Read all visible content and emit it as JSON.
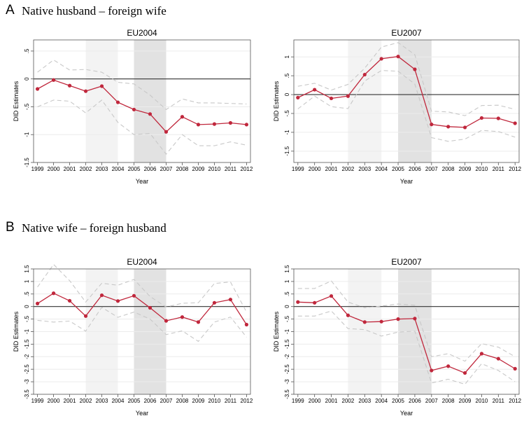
{
  "panels": [
    {
      "letter": "A",
      "title": "Native husband – foreign wife"
    },
    {
      "letter": "B",
      "title": "Native wife – foreign husband"
    }
  ],
  "colors": {
    "line": "#c0273c",
    "ci": "#c8c8c8",
    "shade_light": "#f3f3f3",
    "shade_dark": "#e2e2e2",
    "zero": "#333333"
  },
  "chart_data": [
    {
      "type": "line",
      "panel": "A",
      "title": "EU2004",
      "xlabel": "Year",
      "ylabel": "DID Estimates",
      "x": [
        1999,
        2000,
        2001,
        2002,
        2003,
        2004,
        2005,
        2006,
        2007,
        2008,
        2009,
        2010,
        2011,
        2012
      ],
      "estimate": [
        -0.18,
        -0.02,
        -0.12,
        -0.22,
        -0.13,
        -0.42,
        -0.55,
        -0.63,
        -0.95,
        -0.68,
        -0.82,
        -0.81,
        -0.79,
        -0.82
      ],
      "ci_upper": [
        0.12,
        0.34,
        0.16,
        0.17,
        0.12,
        -0.06,
        -0.09,
        -0.29,
        -0.55,
        -0.36,
        -0.43,
        -0.43,
        -0.44,
        -0.45
      ],
      "ci_lower": [
        -0.5,
        -0.38,
        -0.4,
        -0.61,
        -0.38,
        -0.78,
        -1.0,
        -0.98,
        -1.35,
        -1.0,
        -1.2,
        -1.2,
        -1.13,
        -1.19
      ],
      "shaded": [
        [
          2002,
          2004
        ],
        [
          2005,
          2007
        ]
      ],
      "ylim": [
        -1.5,
        0.7
      ],
      "yticks": [
        -1.5,
        -1,
        -0.5,
        0,
        0.5
      ],
      "ytick_labels": [
        "-1.5",
        "-1",
        "-.5",
        "0",
        ".5"
      ]
    },
    {
      "type": "line",
      "panel": "A",
      "title": "EU2007",
      "xlabel": "Year",
      "ylabel": "DID Estimates",
      "x": [
        1999,
        2000,
        2001,
        2002,
        2003,
        2004,
        2005,
        2006,
        2007,
        2008,
        2009,
        2010,
        2011,
        2012
      ],
      "estimate": [
        -0.08,
        0.13,
        -0.1,
        -0.04,
        0.53,
        0.95,
        1.01,
        0.67,
        -0.79,
        -0.85,
        -0.87,
        -0.62,
        -0.63,
        -0.76
      ],
      "ci_upper": [
        0.22,
        0.3,
        0.12,
        0.27,
        0.7,
        1.26,
        1.38,
        1.06,
        -0.44,
        -0.46,
        -0.56,
        -0.29,
        -0.28,
        -0.39
      ],
      "ci_lower": [
        -0.38,
        -0.04,
        -0.32,
        -0.37,
        0.36,
        0.64,
        0.62,
        0.28,
        -1.14,
        -1.24,
        -1.18,
        -0.95,
        -0.98,
        -1.13
      ],
      "shaded": [
        [
          2002,
          2004
        ],
        [
          2005,
          2007
        ]
      ],
      "ylim": [
        -1.8,
        1.45
      ],
      "yticks": [
        -1.5,
        -1,
        -0.5,
        0,
        0.5,
        1
      ],
      "ytick_labels": [
        "-1.5",
        "-1",
        "-.5",
        "0",
        ".5",
        "1"
      ]
    },
    {
      "type": "line",
      "panel": "B",
      "title": "EU2004",
      "xlabel": "Year",
      "ylabel": "DID Estimates",
      "x": [
        1999,
        2000,
        2001,
        2002,
        2003,
        2004,
        2005,
        2006,
        2007,
        2008,
        2009,
        2010,
        2011,
        2012
      ],
      "estimate": [
        0.12,
        0.53,
        0.23,
        -0.38,
        0.45,
        0.22,
        0.43,
        -0.05,
        -0.57,
        -0.42,
        -0.62,
        0.15,
        0.28,
        -0.72
      ],
      "ci_upper": [
        0.78,
        1.68,
        1.03,
        0.18,
        0.93,
        0.85,
        1.08,
        0.4,
        -0.02,
        0.13,
        0.15,
        0.92,
        0.98,
        -0.22
      ],
      "ci_lower": [
        -0.55,
        -0.62,
        -0.58,
        -0.98,
        -0.03,
        -0.43,
        -0.22,
        -0.5,
        -1.12,
        -0.97,
        -1.39,
        -0.62,
        -0.42,
        -1.22
      ],
      "shaded": [
        [
          2002,
          2004
        ],
        [
          2005,
          2007
        ]
      ],
      "ylim": [
        -3.5,
        1.5
      ],
      "yticks": [
        -3.5,
        -3,
        -2.5,
        -2,
        -1.5,
        -1,
        -0.5,
        0,
        0.5,
        1,
        1.5
      ],
      "ytick_labels": [
        "-3.5",
        "-3",
        "-2.5",
        "-2",
        "-1.5",
        "-1",
        "-.5",
        "0",
        ".5",
        "1",
        "1.5"
      ]
    },
    {
      "type": "line",
      "panel": "B",
      "title": "EU2007",
      "xlabel": "Year",
      "ylabel": "DID Estimates",
      "x": [
        1999,
        2000,
        2001,
        2002,
        2003,
        2004,
        2005,
        2006,
        2007,
        2008,
        2009,
        2010,
        2011,
        2012
      ],
      "estimate": [
        0.18,
        0.15,
        0.42,
        -0.35,
        -0.62,
        -0.6,
        -0.5,
        -0.48,
        -2.55,
        -2.38,
        -2.65,
        -1.88,
        -2.08,
        -2.48
      ],
      "ci_upper": [
        0.72,
        0.72,
        1.02,
        0.18,
        -0.05,
        0.02,
        0.1,
        0.05,
        -2.0,
        -1.88,
        -2.18,
        -1.48,
        -1.62,
        -2.0
      ],
      "ci_lower": [
        -0.38,
        -0.38,
        -0.18,
        -0.88,
        -0.92,
        -1.18,
        -1.02,
        -0.98,
        -3.05,
        -2.9,
        -3.1,
        -2.28,
        -2.55,
        -3.0
      ],
      "shaded": [
        [
          2002,
          2004
        ],
        [
          2005,
          2007
        ]
      ],
      "ylim": [
        -3.5,
        1.5
      ],
      "yticks": [
        -3.5,
        -3,
        -2.5,
        -2,
        -1.5,
        -1,
        -0.5,
        0,
        0.5,
        1,
        1.5
      ],
      "ytick_labels": [
        "-3.5",
        "-3",
        "-2.5",
        "-2",
        "-1.5",
        "-1",
        "-.5",
        "0",
        ".5",
        "1",
        "1.5"
      ]
    }
  ]
}
